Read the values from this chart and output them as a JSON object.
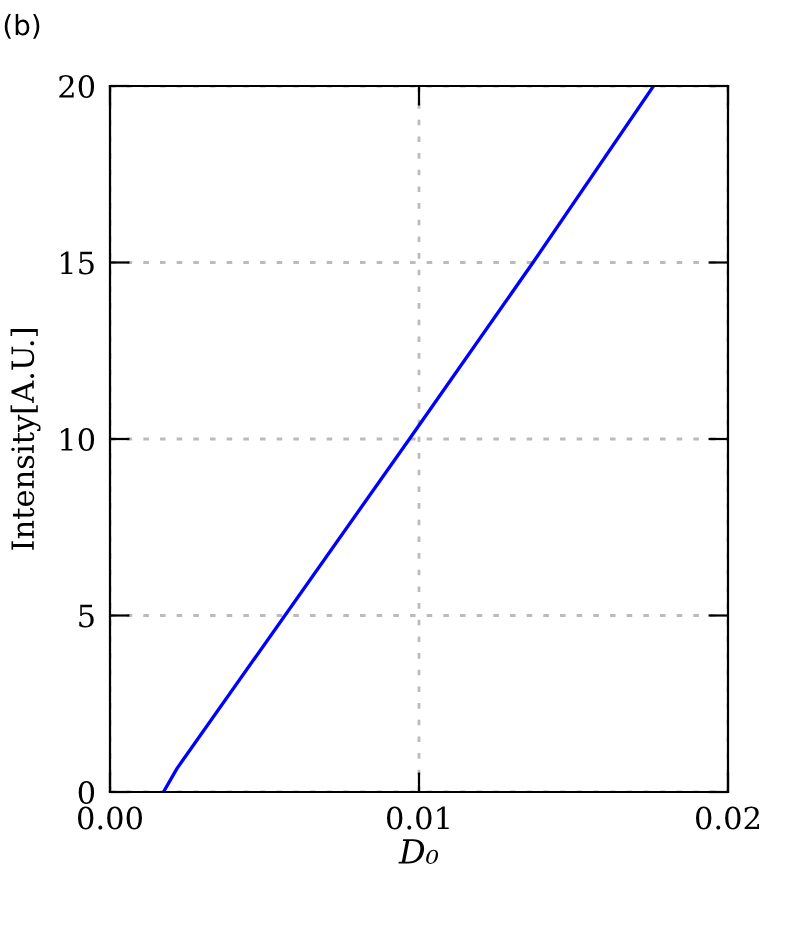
{
  "chart_data": {
    "type": "line",
    "annotations": [
      "(b)"
    ],
    "xlabel": "D₀",
    "ylabel": "Intensity[A.U.]",
    "series": [
      {
        "color": "#0000ff",
        "x": [
          0.00173,
          0.00217,
          0.00969,
          0.01369,
          0.01759
        ],
        "values": [
          0,
          0.67,
          10,
          15,
          20
        ]
      }
    ],
    "xlim": [
      0,
      0.02
    ],
    "ylim": [
      0,
      20
    ],
    "xticks": [
      {
        "value": 0,
        "label": "0.00"
      },
      {
        "value": 0.01,
        "label": "0.01"
      },
      {
        "value": 0.02,
        "label": "0.02"
      }
    ],
    "yticks": [
      0,
      5,
      10,
      15,
      20
    ],
    "grid": true,
    "line_style": "solid",
    "marker": "none"
  }
}
